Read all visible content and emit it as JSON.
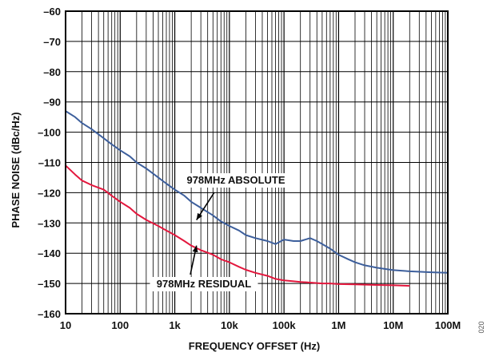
{
  "chart_data": {
    "type": "line",
    "xscale": "log",
    "xlim": [
      10,
      100000000
    ],
    "ylim": [
      -160,
      -60
    ],
    "xlabel": "FREQUENCY OFFSET (Hz)",
    "ylabel": "PHASE NOISE (dBc/Hz)",
    "x_ticks": [
      {
        "value": 10,
        "label": "10"
      },
      {
        "value": 100,
        "label": "100"
      },
      {
        "value": 1000,
        "label": "1k"
      },
      {
        "value": 10000,
        "label": "10k"
      },
      {
        "value": 100000,
        "label": "100k"
      },
      {
        "value": 1000000,
        "label": "1M"
      },
      {
        "value": 10000000,
        "label": "10M"
      },
      {
        "value": 100000000,
        "label": "100M"
      }
    ],
    "y_ticks": [
      {
        "value": -60,
        "label": "–60"
      },
      {
        "value": -70,
        "label": "–70"
      },
      {
        "value": -80,
        "label": "–80"
      },
      {
        "value": -90,
        "label": "–90"
      },
      {
        "value": -100,
        "label": "–100"
      },
      {
        "value": -110,
        "label": "–110"
      },
      {
        "value": -120,
        "label": "–120"
      },
      {
        "value": -130,
        "label": "–130"
      },
      {
        "value": -140,
        "label": "–140"
      },
      {
        "value": -150,
        "label": "–150"
      },
      {
        "value": -160,
        "label": "–160"
      }
    ],
    "grid": true,
    "series": [
      {
        "name": "978MHz ABSOLUTE",
        "color": "#3d5f9c",
        "x": [
          10,
          15,
          20,
          30,
          50,
          70,
          100,
          150,
          200,
          300,
          500,
          700,
          1000,
          1500,
          2000,
          3000,
          5000,
          7000,
          10000,
          15000,
          20000,
          30000,
          50000,
          70000,
          100000,
          150000,
          200000,
          300000,
          400000,
          500000,
          700000,
          1000000,
          1500000,
          2000000,
          3000000,
          5000000,
          7000000,
          10000000,
          20000000,
          50000000,
          100000000
        ],
        "y": [
          -93,
          -95,
          -97,
          -99,
          -102,
          -104,
          -106,
          -108,
          -110,
          -112,
          -115,
          -117,
          -119,
          -121,
          -123,
          -125,
          -127.5,
          -129.5,
          -131,
          -132.5,
          -134,
          -135,
          -136,
          -137,
          -135.5,
          -136,
          -136,
          -135,
          -136,
          -137,
          -138.5,
          -140.5,
          -142,
          -143,
          -144,
          -144.8,
          -145.2,
          -145.6,
          -146,
          -146.3,
          -146.5
        ]
      },
      {
        "name": "978MHz RESIDUAL",
        "color": "#e3173d",
        "x": [
          10,
          15,
          20,
          30,
          50,
          70,
          100,
          150,
          200,
          300,
          500,
          700,
          1000,
          1500,
          2000,
          3000,
          5000,
          7000,
          10000,
          15000,
          20000,
          30000,
          50000,
          70000,
          100000,
          150000,
          200000,
          300000,
          500000,
          700000,
          1000000,
          2000000,
          3000000,
          5000000,
          10000000,
          20000000
        ],
        "y": [
          -111,
          -114,
          -116,
          -117.5,
          -119,
          -121,
          -123,
          -125,
          -127,
          -129,
          -131,
          -132.5,
          -134,
          -136,
          -137.5,
          -139,
          -140.5,
          -142,
          -143,
          -144.5,
          -145.5,
          -146.5,
          -147.5,
          -148.5,
          -149,
          -149.3,
          -149.5,
          -149.7,
          -150,
          -150,
          -150.2,
          -150.3,
          -150.4,
          -150.5,
          -150.6,
          -150.8
        ]
      }
    ],
    "annotations": [
      {
        "text": "978MHz ABSOLUTE",
        "points_to": {
          "x": 2500,
          "y": -129
        }
      },
      {
        "text": "978MHz RESIDUAL",
        "points_to": {
          "x": 2500,
          "y": -137.5
        }
      }
    ],
    "figure_id": "020"
  }
}
